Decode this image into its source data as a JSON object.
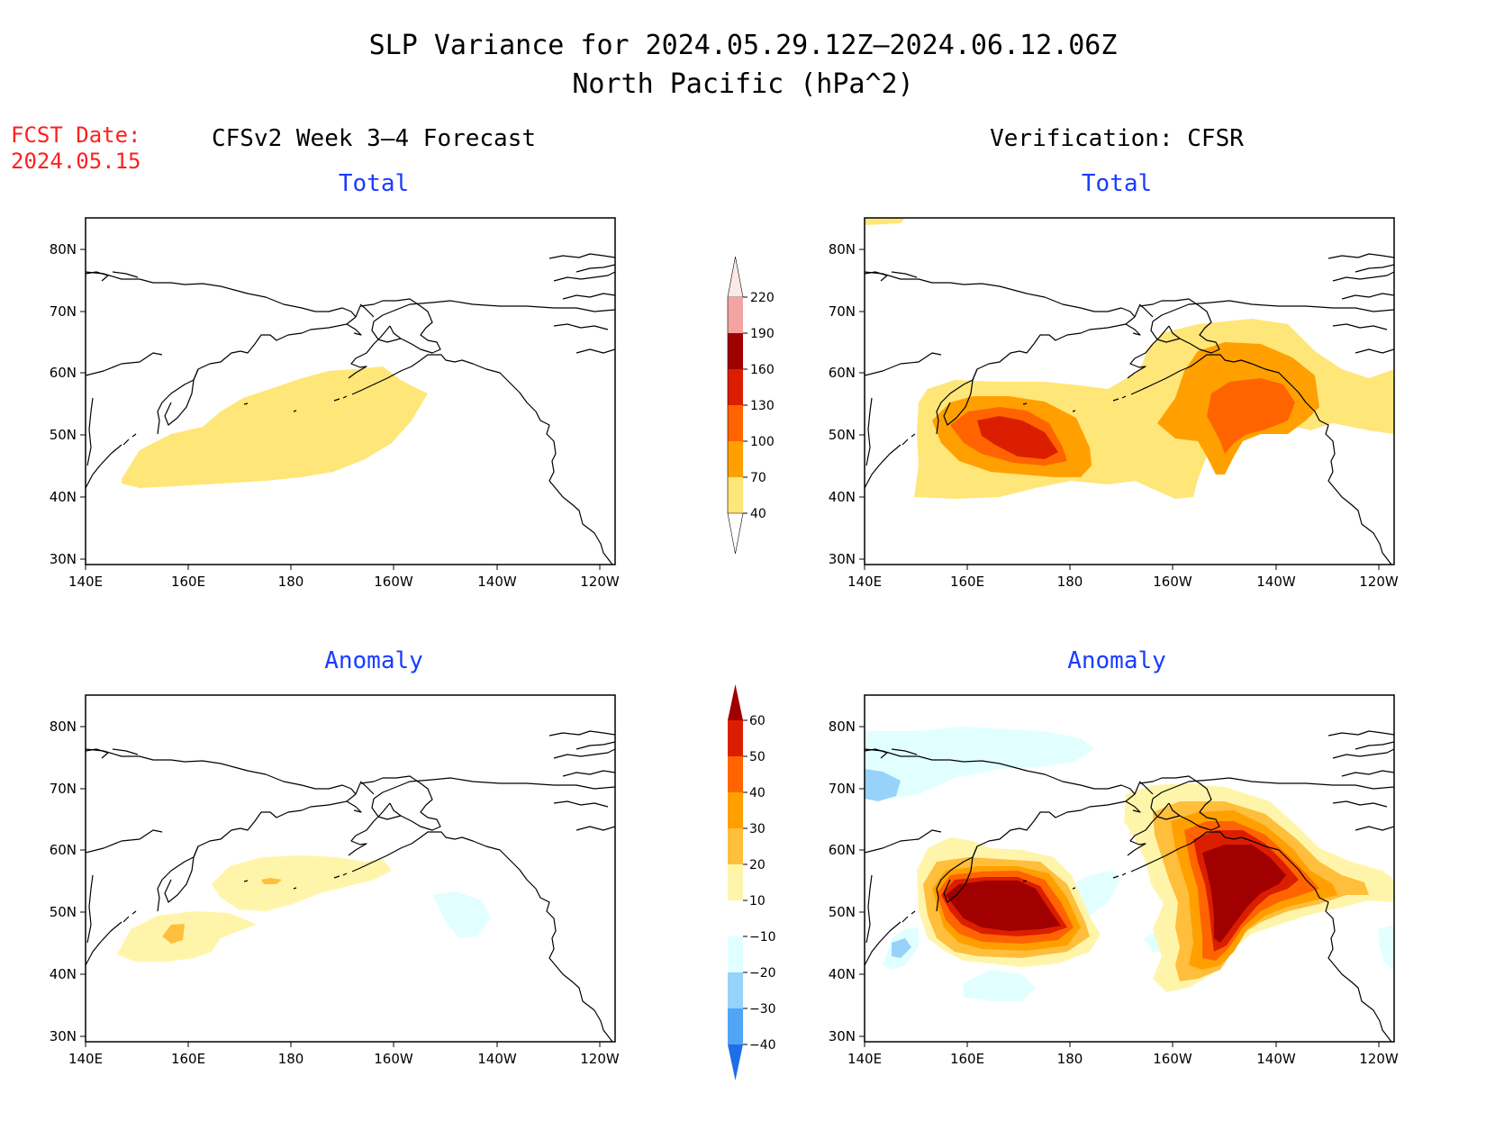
{
  "title": {
    "line1": "SLP Variance for 2024.05.29.12Z–2024.06.12.06Z",
    "line2": "North Pacific (hPa^2)"
  },
  "fcst": {
    "label": "FCST Date:",
    "date": "2024.05.15"
  },
  "columns": {
    "left": "CFSv2 Week 3–4 Forecast",
    "right": "Verification: CFSR"
  },
  "panels": {
    "top_left": {
      "subtitle": "Total"
    },
    "top_right": {
      "subtitle": "Total"
    },
    "bottom_left": {
      "subtitle": "Anomaly"
    },
    "bottom_right": {
      "subtitle": "Anomaly"
    }
  },
  "axes": {
    "lat_labels": [
      "80N",
      "70N",
      "60N",
      "50N",
      "40N",
      "30N"
    ],
    "lon_labels": [
      "140E",
      "160E",
      "180",
      "160W",
      "140W",
      "120W"
    ]
  },
  "colorbars": {
    "total": {
      "labels": [
        "220",
        "190",
        "160",
        "130",
        "100",
        "70",
        "40"
      ],
      "colors": [
        "#fde9e6",
        "#f4a3a3",
        "#a00000",
        "#dc1e00",
        "#ff6400",
        "#ffa000",
        "#ffe678"
      ]
    },
    "anomaly": {
      "labels": [
        "60",
        "50",
        "40",
        "30",
        "20",
        "10",
        "−10",
        "−20",
        "−30",
        "−40"
      ],
      "colors": [
        "#a00000",
        "#dc1e00",
        "#ff6400",
        "#ffa000",
        "#ffbe3c",
        "#fff5aa",
        "#ffffff",
        "#e1ffff",
        "#96d2fa",
        "#50a5f5",
        "#1e6ee6"
      ]
    }
  },
  "legend_colors": {
    "t40": "#ffe678",
    "t70": "#ffa000",
    "t100": "#ff6400",
    "t130": "#dc1e00",
    "a10": "#fff5aa",
    "a20": "#ffbe3c",
    "a30": "#ffa000",
    "a40": "#ff6400",
    "a50": "#dc1e00",
    "a60": "#a00000",
    "am10": "#e1ffff",
    "am20": "#96d2fa"
  }
}
